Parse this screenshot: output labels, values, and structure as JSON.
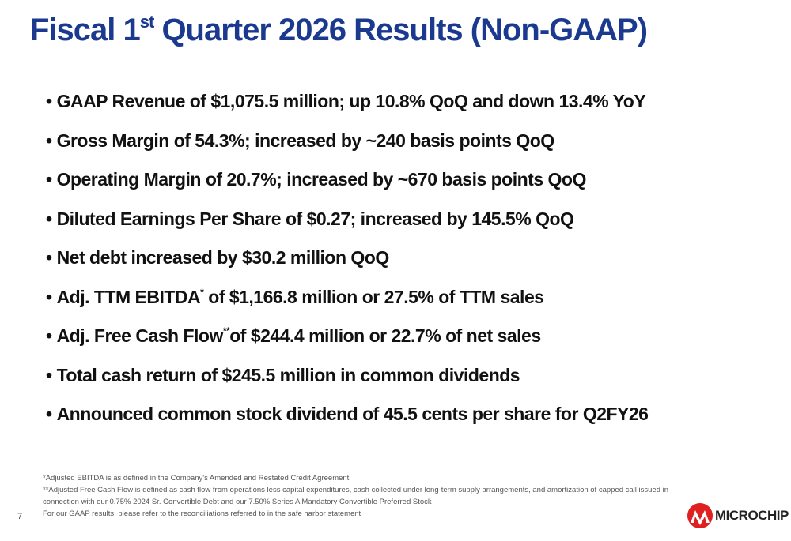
{
  "title": {
    "before": "Fiscal 1",
    "sup": "st",
    "after": " Quarter 2026 Results (Non-GAAP)"
  },
  "bullets": [
    "GAAP Revenue of $1,075.5 million; up 10.8% QoQ and down 13.4% YoY",
    "Gross Margin of 54.3%; increased by ~240 basis points QoQ",
    "Operating Margin of 20.7%; increased by ~670 basis points QoQ",
    "Diluted Earnings Per Share of $0.27; increased by 145.5% QoQ",
    "Net debt increased by $30.2 million QoQ",
    {
      "before": "Adj. TTM EBITDA",
      "sup": "*",
      "after": " of $1,166.8 million or 27.5% of TTM sales"
    },
    {
      "before": "Adj. Free Cash Flow",
      "sup": "**",
      "after": "of $244.4 million or 22.7% of net sales"
    },
    "Total cash return of $245.5 million in common dividends",
    "Announced common stock dividend of 45.5 cents per share for Q2FY26"
  ],
  "footnotes": [
    "*Adjusted EBITDA is as defined in the Company's Amended and Restated Credit Agreement",
    "**Adjusted Free Cash Flow is defined as cash flow from operations less capital expenditures, cash collected under long-term supply arrangements, and amortization of capped call issued in connection with our 0.75% 2024 Sr. Convertible Debt and our 7.50% Series A Mandatory Convertible Preferred Stock",
    "For our GAAP results, please refer to the reconciliations referred to in the safe harbor statement"
  ],
  "page_number": "7",
  "logo": "MICROCHIP"
}
